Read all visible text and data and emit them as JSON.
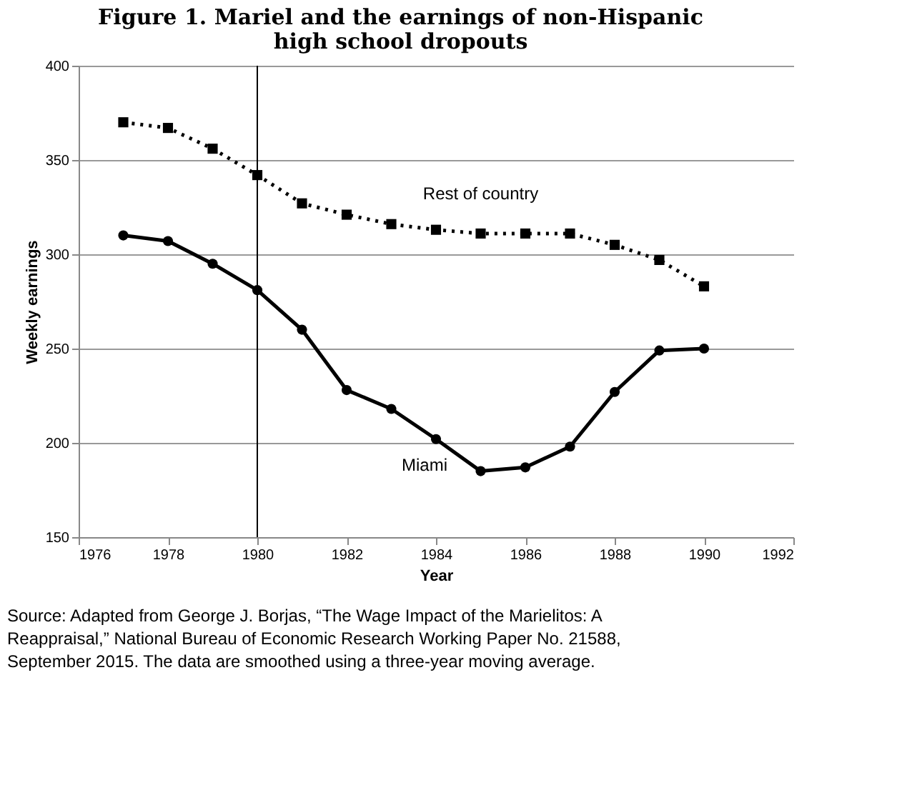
{
  "chart_data": {
    "type": "line",
    "title": "Figure 1. Mariel and the earnings of non-Hispanic high school dropouts",
    "xlabel": "Year",
    "ylabel": "Weekly earnings",
    "x": [
      1977,
      1978,
      1979,
      1980,
      1981,
      1982,
      1983,
      1984,
      1985,
      1986,
      1987,
      1988,
      1989,
      1990
    ],
    "series": [
      {
        "name": "Rest of country",
        "color": "#000000",
        "marker": "square",
        "line_style": "dotted",
        "values": [
          370,
          367,
          356,
          342,
          327,
          321,
          316,
          313,
          311,
          311,
          311,
          305,
          297,
          283
        ]
      },
      {
        "name": "Miami",
        "color": "#000000",
        "marker": "circle",
        "line_style": "solid",
        "values": [
          310,
          307,
          295,
          281,
          260,
          228,
          218,
          202,
          185,
          187,
          198,
          227,
          249,
          250
        ]
      }
    ],
    "xlim": [
      1976,
      1992
    ],
    "xticks": [
      1976,
      1978,
      1980,
      1982,
      1984,
      1986,
      1988,
      1990,
      1992
    ],
    "ylim": [
      150,
      400
    ],
    "yticks": [
      150,
      200,
      250,
      300,
      350,
      400
    ],
    "grid": "y",
    "ref_lines": [
      {
        "axis": "x",
        "value": 1980,
        "color": "#000000"
      }
    ],
    "annotations": [
      "Source: Adapted from George J. Borjas, “The Wage Impact of the Marielitos: A Reappraisal,” National Bureau of Economic Research Working Paper No. 21588, September 2015. The data are smoothed using a three-year moving average."
    ]
  }
}
